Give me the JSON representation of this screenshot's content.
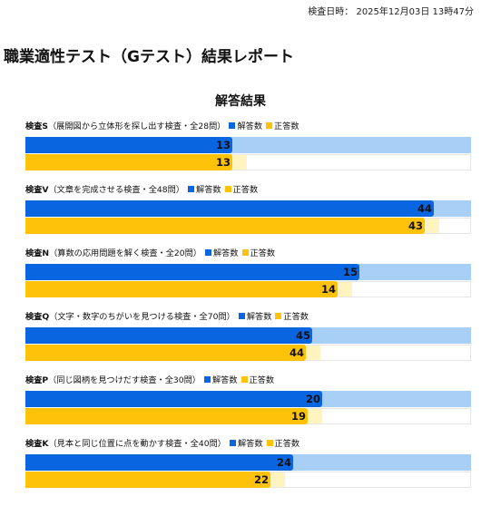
{
  "header": {
    "timestamp": "検査日時： 2025年12月03日 13時47分",
    "title": "職業適性テスト（Gテスト）結果レポート",
    "section_heading": "解答結果"
  },
  "legend": {
    "answered": "解答数",
    "correct": "正答数"
  },
  "colors": {
    "answered": "#0a66e0",
    "answered_track": "#a8d0f7",
    "correct": "#ffc20a",
    "correct_track": "#fff3c0"
  },
  "chart_data": {
    "type": "bar",
    "orientation": "horizontal",
    "title": "解答結果",
    "series_names": [
      "解答数",
      "正答数"
    ],
    "groups": [
      {
        "name": "検査S",
        "desc": "（展開図から立体形を探し出す検査・全28問）",
        "total": 28,
        "answered": 13,
        "correct": 13
      },
      {
        "name": "検査V",
        "desc": "（文章を完成させる検査・全48問）",
        "total": 48,
        "answered": 44,
        "correct": 43
      },
      {
        "name": "検査N",
        "desc": "（算数の応用問題を解く検査・全20問）",
        "total": 20,
        "answered": 15,
        "correct": 14
      },
      {
        "name": "検査Q",
        "desc": "（文字・数字のちがいを見つける検査・全70問）",
        "total": 70,
        "answered": 45,
        "correct": 44
      },
      {
        "name": "検査P",
        "desc": "（同じ図柄を見つけだす検査・全30問）",
        "total": 30,
        "answered": 20,
        "correct": 19
      },
      {
        "name": "検査K",
        "desc": "（見本と同じ位置に点を動かす検査・全40問）",
        "total": 40,
        "answered": 24,
        "correct": 22
      }
    ]
  }
}
